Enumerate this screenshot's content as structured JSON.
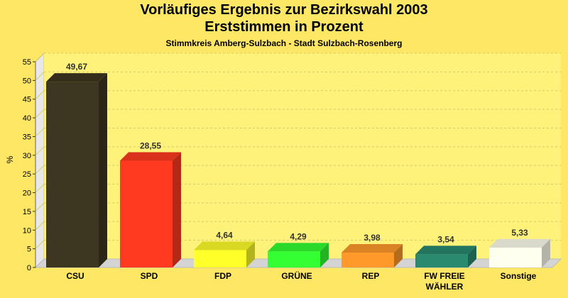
{
  "chart_data": {
    "type": "bar",
    "title": "Vorläufiges Ergebnis zur Bezirkswahl 2003",
    "title_line2": "Erststimmen in Prozent",
    "subtitle": "Stimmkreis Amberg-Sulzbach - Stadt Sulzbach-Rosenberg",
    "ylabel": "%",
    "xlabel": "",
    "ylim": [
      0,
      55
    ],
    "yticks": [
      0,
      5,
      10,
      15,
      20,
      25,
      30,
      35,
      40,
      45,
      50,
      55
    ],
    "grid": true,
    "categories": [
      "CSU",
      "SPD",
      "FDP",
      "GRÜNE",
      "REP",
      "FW FREIE WÄHLER",
      "Sonstige"
    ],
    "category_lines": [
      [
        "CSU"
      ],
      [
        "SPD"
      ],
      [
        "FDP"
      ],
      [
        "GRÜNE"
      ],
      [
        "REP"
      ],
      [
        "FW FREIE",
        "WÄHLER"
      ],
      [
        "Sonstige"
      ]
    ],
    "values": [
      49.67,
      28.55,
      4.64,
      4.29,
      3.98,
      3.54,
      5.33
    ],
    "value_labels": [
      "49,67",
      "28,55",
      "4,64",
      "4,29",
      "3,98",
      "3,54",
      "5,33"
    ],
    "colors": [
      "#3d3620",
      "#ff3a20",
      "#ffff2a",
      "#33ff33",
      "#ff9a2a",
      "#2a8a70",
      "#fffff0"
    ]
  }
}
